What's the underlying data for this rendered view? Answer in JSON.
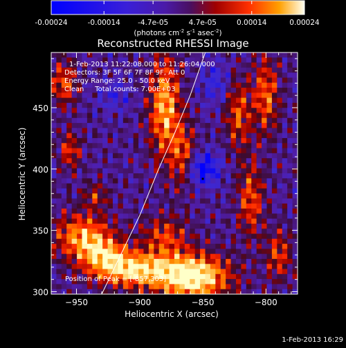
{
  "colorbar": {
    "ticks": [
      "-0.00024",
      "-0.00014",
      "-4.7e-05",
      "4.7e-05",
      "0.00014",
      "0.00024"
    ],
    "tick_values": [
      -0.00024,
      -0.00014,
      -4.7e-05,
      4.7e-05,
      0.00014,
      0.00024
    ],
    "range": [
      -0.00024,
      0.00024
    ],
    "units_text": "(photons cm-2 s-1 asec-2)",
    "units_main": "(photons cm",
    "units_sup1": "-2",
    "units_mid": " s",
    "units_sup2": "-1",
    "units_asec": " asec",
    "units_sup3": "-2",
    "units_close": ")"
  },
  "chart_data": {
    "type": "heatmap",
    "title": "Reconstructed RHESSI Image",
    "xlabel": "Heliocentric X (arcsec)",
    "ylabel": "Heliocentric Y (arcsec)",
    "xlim": [
      -970,
      -775
    ],
    "ylim": [
      298,
      495
    ],
    "x_ticks": [
      -950,
      -900,
      -850,
      -800
    ],
    "y_ticks": [
      300,
      350,
      400,
      450
    ],
    "x_tick_labels": [
      "−950",
      "−900",
      "−850",
      "−800"
    ],
    "y_tick_labels": [
      "300",
      "350",
      "400",
      "450"
    ],
    "limb_curve": [
      [
        -930,
        298
      ],
      [
        -915,
        330
      ],
      [
        -900,
        362
      ],
      [
        -885,
        400
      ],
      [
        -872,
        430
      ],
      [
        -860,
        460
      ],
      [
        -848,
        495
      ]
    ],
    "peak": [
      -857,
      303
    ],
    "annotations": {
      "line1": "1-Feb-2013 11:22:08.000 to 11:26:04.000",
      "line2": "Detectors: 3F 5F 6F 7F 8F 9F, Att 0",
      "line3": "Energy Range: 25.0 - 50.0 keV",
      "line4": "Clean     Total counts: 7.00E+03",
      "peak_text": "Position of Peak = [-857,303]"
    }
  },
  "footer_date": "1-Feb-2013 16:29"
}
